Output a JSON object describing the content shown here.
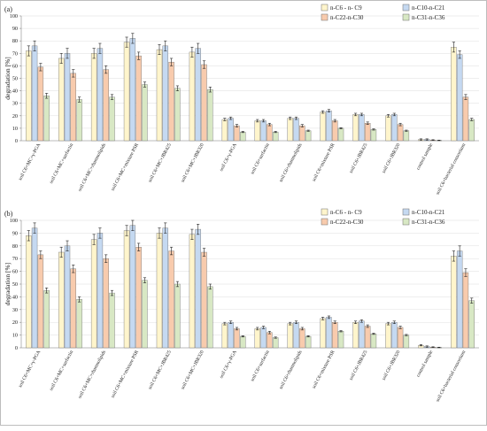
{
  "chart_data": [
    {
      "type": "bar",
      "panel": "(a)",
      "ylabel": "degradation [%]",
      "ylim": [
        0,
        100
      ],
      "ytick_step": 10,
      "categories": [
        "soil C6+MC+γ-PGA",
        "soil C6+MC+surfactin",
        "soil C6+MC+rhamnolipids",
        "soil C6+MC+mixture PSR",
        "soil C6+MC+JBR425",
        "soil C6+MC+JBR320",
        "soil C6+γ-PGA",
        "soil C6+surfactin",
        "soil C6+rhamnolipids",
        "soil C6+mixture PSR",
        "soil C6+JBR425",
        "soil C6+JBR320",
        "control sample",
        "soil C6+bacterial consortium"
      ],
      "legend_position": "top-right",
      "series": [
        {
          "name": "n-C6 - n- C9",
          "color": "#fff5cc",
          "values": [
            72,
            66,
            70,
            79,
            73,
            71,
            17,
            16,
            18,
            23,
            21,
            20,
            1,
            75
          ],
          "errors": [
            4,
            4,
            4,
            4,
            4,
            4,
            1,
            1,
            1,
            1,
            1,
            1,
            0.5,
            4
          ]
        },
        {
          "name": "n-C10-n-C21",
          "color": "#c5d9f1",
          "values": [
            76,
            70,
            74,
            82,
            76,
            74,
            18,
            16,
            18,
            24,
            21,
            21,
            1,
            69
          ],
          "errors": [
            4,
            4,
            4,
            4,
            4,
            4,
            1,
            1,
            1,
            1,
            1,
            1,
            0.5,
            3
          ]
        },
        {
          "name": "n-C22-n-C30",
          "color": "#f8cbad",
          "values": [
            59,
            54,
            57,
            68,
            63,
            61,
            12,
            13,
            12,
            16,
            14,
            13,
            0.5,
            35
          ],
          "errors": [
            3,
            3,
            3,
            3,
            3,
            3,
            1,
            1,
            1,
            1,
            1,
            1,
            0.3,
            2
          ]
        },
        {
          "name": "n-C31-n-C36",
          "color": "#d8e8c4",
          "values": [
            36,
            33,
            35,
            45,
            42,
            41,
            7,
            7,
            8,
            10,
            9,
            8,
            0.3,
            17
          ],
          "errors": [
            2,
            2,
            2,
            2,
            2,
            2,
            0.5,
            0.5,
            0.5,
            0.5,
            0.5,
            0.5,
            0.2,
            1
          ]
        }
      ]
    },
    {
      "type": "bar",
      "panel": "(b)",
      "ylabel": "degradation [%]",
      "ylim": [
        0,
        100
      ],
      "ytick_step": 10,
      "categories": [
        "soil C6+MC+γ-PGA",
        "soil C6+MC+surfactin",
        "soil C6+MC+rhamnolipids",
        "soil C6+MC+mixture PSR",
        "soil C6+MC+JBR425",
        "soil C6+MC+JBR320",
        "soil C6+γ-PGA",
        "soil C6+surfactin",
        "soil C6+rhamnolipids",
        "soil C6+mixture PSR",
        "soil C6+JBR425",
        "soil C6+JBR320",
        "control sample",
        "soil C6+bacterial consortium"
      ],
      "legend_position": "top-right",
      "series": [
        {
          "name": "n-C6 - n- C9",
          "color": "#fff5cc",
          "values": [
            88,
            75,
            85,
            92,
            90,
            89,
            19,
            15,
            19,
            23,
            20,
            19,
            2,
            72
          ],
          "errors": [
            4,
            4,
            4,
            4,
            4,
            4,
            1,
            1,
            1,
            1,
            1,
            1,
            0.5,
            4
          ]
        },
        {
          "name": "n-C10-n-C21",
          "color": "#c5d9f1",
          "values": [
            94,
            80,
            90,
            96,
            94,
            93,
            20,
            16,
            20,
            24,
            21,
            20,
            1,
            76
          ],
          "errors": [
            4,
            4,
            4,
            4,
            4,
            4,
            1,
            1,
            1,
            1,
            1,
            1,
            0.5,
            4
          ]
        },
        {
          "name": "n-C22-n-C30",
          "color": "#f8cbad",
          "values": [
            73,
            62,
            70,
            79,
            76,
            75,
            15,
            12,
            15,
            20,
            17,
            16,
            0.5,
            59
          ],
          "errors": [
            3,
            3,
            3,
            3,
            3,
            3,
            1,
            1,
            1,
            1,
            1,
            1,
            0.3,
            3
          ]
        },
        {
          "name": "n-C31-n-C36",
          "color": "#d8e8c4",
          "values": [
            45,
            38,
            43,
            53,
            50,
            48,
            9,
            8,
            9,
            13,
            11,
            10,
            0.3,
            37
          ],
          "errors": [
            2,
            2,
            2,
            2,
            2,
            2,
            0.5,
            0.5,
            0.5,
            0.5,
            0.5,
            0.5,
            0.2,
            2
          ]
        }
      ]
    }
  ]
}
